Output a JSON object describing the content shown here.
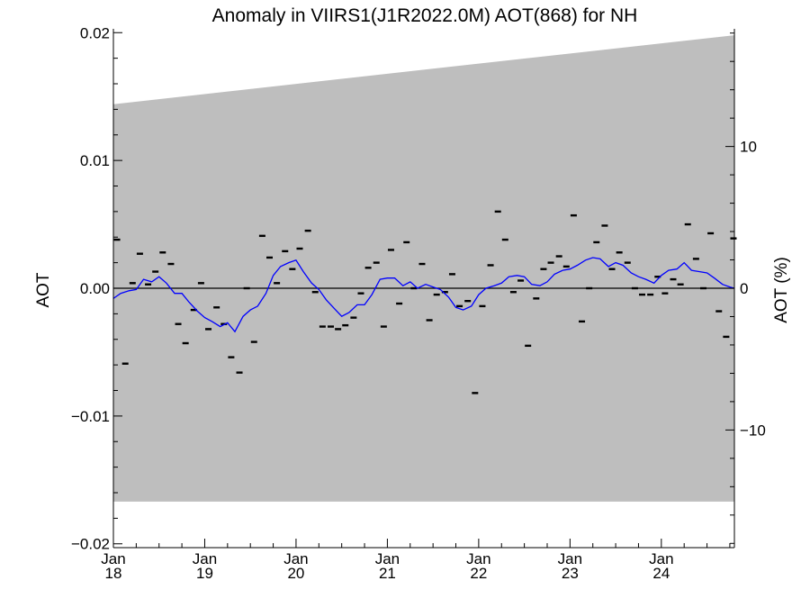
{
  "chart_data": {
    "type": "line",
    "title": "Anomaly in VIIRS1(J1R2022.0M) AOT(868) for NH",
    "ylabel": "AOT",
    "ylabel_right": "AOT (%)",
    "xlabel": "",
    "ylim": [
      -0.0203,
      0.0203
    ],
    "ylim_right": [
      -18.3,
      18.3
    ],
    "xlim": [
      2018.0,
      2024.8
    ],
    "yticks": [
      {
        "v": 0.02,
        "label": "0.02"
      },
      {
        "v": 0.01,
        "label": "0.01"
      },
      {
        "v": 0.0,
        "label": "0.00"
      },
      {
        "v": -0.01,
        "label": "−0.01"
      },
      {
        "v": -0.02,
        "label": "−0.02"
      }
    ],
    "yticks_right": [
      {
        "v": 10,
        "label": "10"
      },
      {
        "v": 0,
        "label": "0"
      },
      {
        "v": -10,
        "label": "−10"
      }
    ],
    "xticks": [
      {
        "v": 2018.0,
        "month": "Jan",
        "year": "18"
      },
      {
        "v": 2019.0,
        "month": "Jan",
        "year": "19"
      },
      {
        "v": 2020.0,
        "month": "Jan",
        "year": "20"
      },
      {
        "v": 2021.0,
        "month": "Jan",
        "year": "21"
      },
      {
        "v": 2022.0,
        "month": "Jan",
        "year": "22"
      },
      {
        "v": 2023.0,
        "month": "Jan",
        "year": "23"
      },
      {
        "v": 2024.0,
        "month": "Jan",
        "year": "24"
      }
    ],
    "band": {
      "upper": [
        [
          2018.0,
          0.0144
        ],
        [
          2024.8,
          0.0198
        ]
      ],
      "lower": [
        [
          2018.0,
          -0.0167
        ],
        [
          2024.8,
          -0.0167
        ]
      ],
      "color": "#bebebe"
    },
    "series": [
      {
        "kind": "monthly-markers",
        "color": "#000000",
        "x": [
          2018.04,
          2018.13,
          2018.21,
          2018.29,
          2018.38,
          2018.46,
          2018.54,
          2018.63,
          2018.71,
          2018.79,
          2018.88,
          2018.96,
          2019.04,
          2019.13,
          2019.21,
          2019.29,
          2019.38,
          2019.46,
          2019.54,
          2019.63,
          2019.71,
          2019.79,
          2019.88,
          2019.96,
          2020.04,
          2020.13,
          2020.21,
          2020.29,
          2020.38,
          2020.46,
          2020.54,
          2020.63,
          2020.71,
          2020.79,
          2020.88,
          2020.96,
          2021.04,
          2021.13,
          2021.21,
          2021.29,
          2021.38,
          2021.46,
          2021.54,
          2021.63,
          2021.71,
          2021.79,
          2021.88,
          2021.96,
          2022.04,
          2022.13,
          2022.21,
          2022.29,
          2022.38,
          2022.46,
          2022.54,
          2022.63,
          2022.71,
          2022.79,
          2022.88,
          2022.96,
          2023.04,
          2023.13,
          2023.21,
          2023.29,
          2023.38,
          2023.46,
          2023.54,
          2023.63,
          2023.71,
          2023.79,
          2023.88,
          2023.96,
          2024.04,
          2024.13,
          2024.21,
          2024.29,
          2024.38,
          2024.46,
          2024.54,
          2024.63,
          2024.71,
          2024.79
        ],
        "values": [
          0.0038,
          -0.0059,
          0.0004,
          0.0027,
          0.0003,
          0.0013,
          0.0028,
          0.0019,
          -0.0028,
          -0.0043,
          -0.0017,
          0.0004,
          -0.0032,
          -0.0015,
          -0.0028,
          -0.0054,
          -0.0066,
          0.0,
          -0.0042,
          0.0041,
          0.0024,
          0.0004,
          0.0029,
          0.0015,
          0.0031,
          0.0045,
          -0.0003,
          -0.003,
          -0.003,
          -0.0032,
          -0.0029,
          -0.0023,
          -0.0004,
          0.0016,
          0.002,
          -0.003,
          0.003,
          -0.0012,
          0.0036,
          0.0,
          0.0019,
          -0.0025,
          -0.0005,
          -0.0003,
          0.0011,
          -0.0014,
          -0.001,
          -0.0082,
          -0.0014,
          0.0018,
          0.006,
          0.0038,
          -0.0003,
          0.0006,
          -0.0045,
          -0.0008,
          0.0015,
          0.002,
          0.0025,
          0.0017,
          0.0057,
          -0.0026,
          0.0,
          0.0036,
          0.0049,
          0.0015,
          0.0028,
          0.002,
          0.0,
          -0.0005,
          -0.0005,
          0.0009,
          -0.0004,
          0.0007,
          0.0003,
          0.005,
          0.0023,
          0.0,
          0.0043,
          -0.0018,
          -0.0038,
          0.0039
        ]
      },
      {
        "kind": "running-mean",
        "color": "#0000ff",
        "x": [
          2018.0,
          2018.08,
          2018.17,
          2018.25,
          2018.33,
          2018.42,
          2018.5,
          2018.58,
          2018.67,
          2018.75,
          2018.83,
          2018.92,
          2019.0,
          2019.08,
          2019.17,
          2019.25,
          2019.33,
          2019.42,
          2019.5,
          2019.58,
          2019.67,
          2019.75,
          2019.83,
          2019.92,
          2020.0,
          2020.08,
          2020.17,
          2020.25,
          2020.33,
          2020.42,
          2020.5,
          2020.58,
          2020.67,
          2020.75,
          2020.83,
          2020.92,
          2021.0,
          2021.08,
          2021.17,
          2021.25,
          2021.33,
          2021.42,
          2021.5,
          2021.58,
          2021.67,
          2021.75,
          2021.83,
          2021.92,
          2022.0,
          2022.08,
          2022.17,
          2022.25,
          2022.33,
          2022.42,
          2022.5,
          2022.58,
          2022.67,
          2022.75,
          2022.83,
          2022.92,
          2023.0,
          2023.08,
          2023.17,
          2023.25,
          2023.33,
          2023.42,
          2023.5,
          2023.58,
          2023.67,
          2023.75,
          2023.83,
          2023.92,
          2024.0,
          2024.08,
          2024.17,
          2024.25,
          2024.33,
          2024.42,
          2024.5,
          2024.58,
          2024.67,
          2024.75,
          2024.8
        ],
        "values": [
          -0.0008,
          -0.0004,
          -0.0002,
          -0.0001,
          0.0007,
          0.0005,
          0.0009,
          0.0004,
          -0.0004,
          -0.0004,
          -0.0011,
          -0.0018,
          -0.0023,
          -0.0026,
          -0.003,
          -0.0027,
          -0.0034,
          -0.0022,
          -0.0017,
          -0.0014,
          -0.0004,
          0.001,
          0.0017,
          0.002,
          0.0022,
          0.0013,
          0.0004,
          -0.0001,
          -0.0009,
          -0.0016,
          -0.0022,
          -0.0019,
          -0.0013,
          -0.0013,
          -0.0005,
          0.0007,
          0.0008,
          0.0008,
          0.0002,
          0.0005,
          0.0,
          0.0003,
          0.0001,
          -0.0001,
          -0.0007,
          -0.0015,
          -0.0017,
          -0.0014,
          -0.0005,
          0.0,
          0.0002,
          0.0004,
          0.0009,
          0.001,
          0.0009,
          0.0003,
          0.0002,
          0.0005,
          0.0011,
          0.0014,
          0.0015,
          0.0018,
          0.0022,
          0.0024,
          0.0023,
          0.0017,
          0.002,
          0.0018,
          0.0012,
          0.0009,
          0.0007,
          0.0004,
          0.001,
          0.0014,
          0.0015,
          0.002,
          0.0014,
          0.0013,
          0.0012,
          0.0008,
          0.0003,
          0.0001,
          -0.0
        ]
      }
    ],
    "zero_line": 0.0,
    "grid": false,
    "legend": "none"
  }
}
